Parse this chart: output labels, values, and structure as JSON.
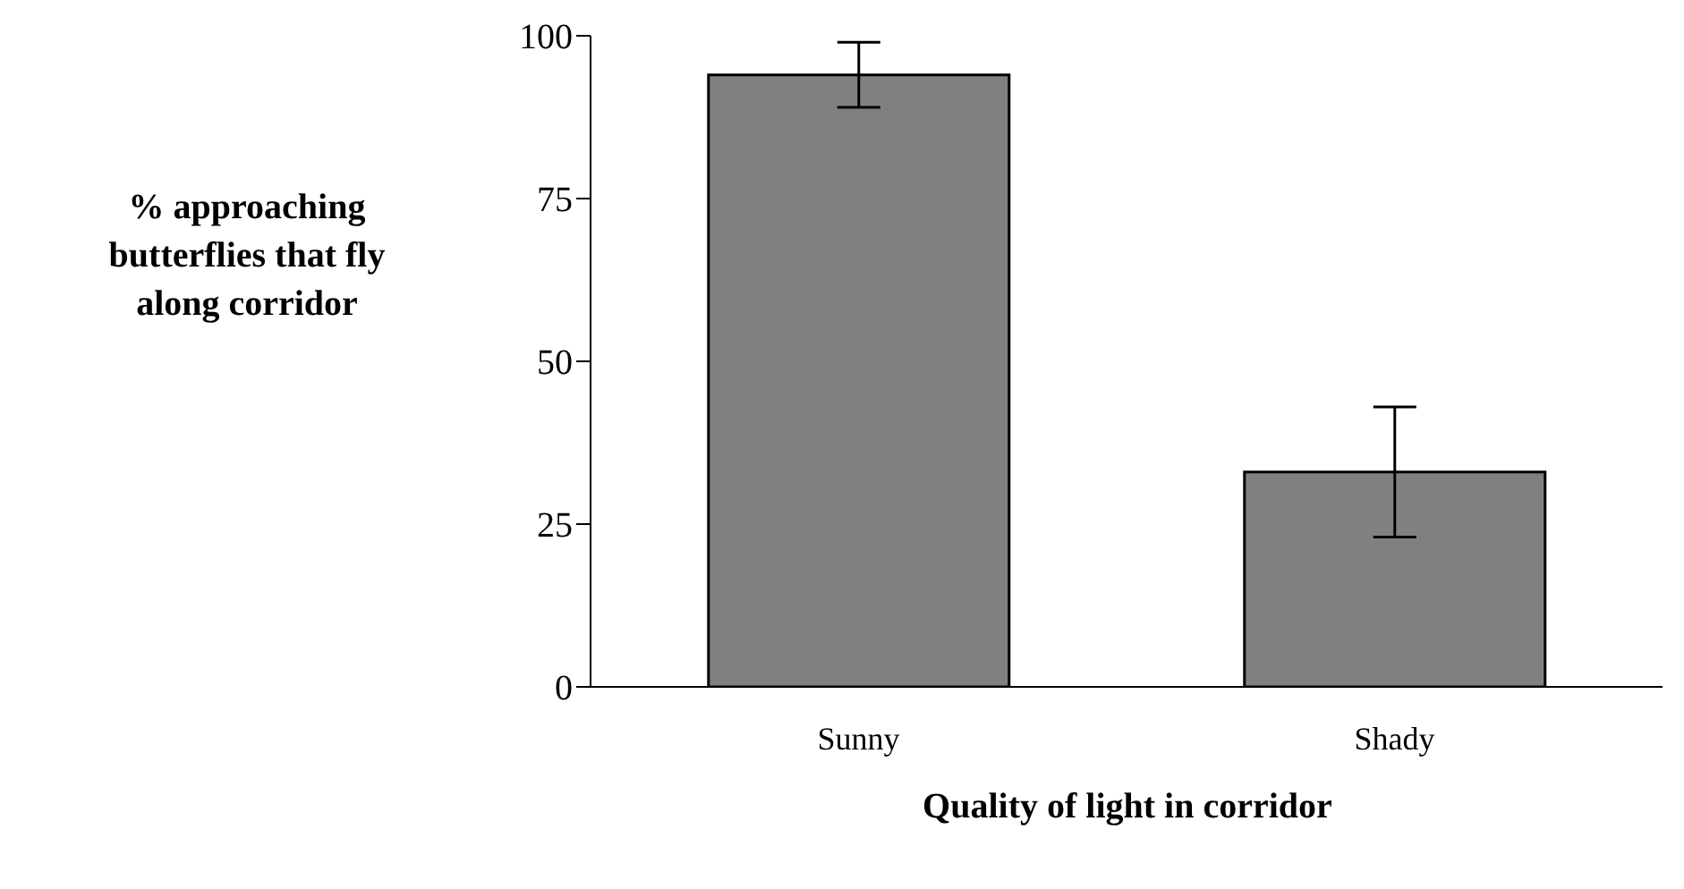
{
  "chart_data": {
    "type": "bar",
    "xlabel": "Quality of light in corridor",
    "ylabel": "% approaching butterflies that fly along corridor",
    "categories": [
      "Sunny",
      "Shady"
    ],
    "values": [
      94,
      33
    ],
    "errors": [
      5,
      10
    ],
    "color": "#808080",
    "ylim": [
      0,
      100
    ],
    "yticks": [
      0,
      25,
      50,
      75,
      100
    ]
  }
}
